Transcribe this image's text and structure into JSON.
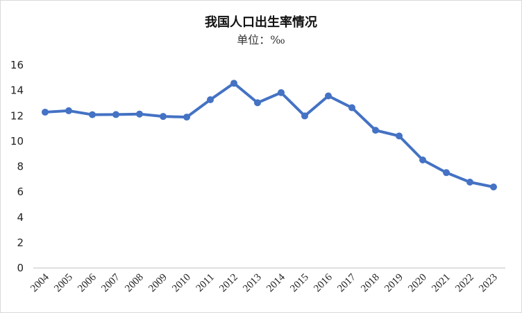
{
  "chart_data": {
    "type": "line",
    "title": "我国人口出生率情况",
    "subtitle": "单位：‰",
    "xlabel": "",
    "ylabel": "",
    "x": [
      "2004",
      "2005",
      "2006",
      "2007",
      "2008",
      "2009",
      "2010",
      "2011",
      "2012",
      "2013",
      "2014",
      "2015",
      "2016",
      "2017",
      "2018",
      "2019",
      "2020",
      "2021",
      "2022",
      "2023"
    ],
    "series": [
      {
        "values": [
          12.29,
          12.4,
          12.09,
          12.1,
          12.14,
          11.95,
          11.9,
          13.27,
          14.57,
          13.03,
          13.83,
          11.99,
          13.57,
          12.64,
          10.86,
          10.41,
          8.52,
          7.52,
          6.77,
          6.39
        ]
      }
    ],
    "ylim": [
      0,
      16
    ],
    "yticks": [
      "0",
      "2",
      "4",
      "6",
      "8",
      "10",
      "12",
      "14",
      "16"
    ],
    "grid": false,
    "line_color": "#4472C4"
  }
}
